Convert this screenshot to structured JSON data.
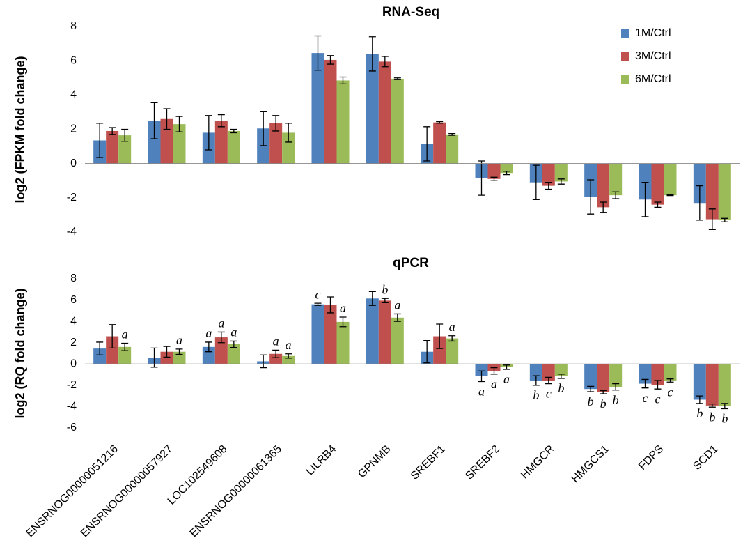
{
  "chart_data": [
    {
      "type": "bar",
      "title": "RNA-Seq",
      "y_label": "log2 (FPKM fold change)",
      "ylim": [
        -4,
        8
      ],
      "yticks": [
        -4,
        -2,
        0,
        2,
        4,
        6,
        8
      ],
      "legend": "top-right",
      "series": [
        {
          "name": "1M/Ctrl",
          "color": "#4f81bd",
          "values": [
            1.35,
            2.5,
            1.8,
            2.05,
            6.45,
            6.4,
            1.15,
            -0.85,
            -1.1,
            -1.95,
            -2.1,
            -2.3
          ],
          "errors": [
            1.0,
            1.05,
            1.0,
            1.0,
            1.0,
            1.0,
            1.0,
            1.0,
            1.0,
            1.0,
            1.0,
            1.0
          ]
        },
        {
          "name": "3M/Ctrl",
          "color": "#c0504d",
          "values": [
            1.9,
            2.6,
            2.5,
            2.35,
            6.05,
            5.95,
            2.4,
            -0.9,
            -1.3,
            -2.55,
            -2.4,
            -3.25
          ],
          "errors": [
            0.2,
            0.6,
            0.35,
            0.45,
            0.25,
            0.3,
            0.05,
            0.1,
            0.2,
            0.3,
            0.15,
            0.6
          ]
        },
        {
          "name": "6M/Ctrl",
          "color": "#9bbb59",
          "values": [
            1.65,
            2.3,
            1.9,
            1.8,
            4.85,
            4.95,
            1.7,
            -0.55,
            -1.05,
            -1.85,
            -1.85,
            -3.3
          ],
          "errors": [
            0.35,
            0.45,
            0.1,
            0.55,
            0.2,
            0.05,
            0.05,
            0.1,
            0.15,
            0.2,
            0.02,
            0.1
          ]
        }
      ]
    },
    {
      "type": "bar",
      "title": "qPCR",
      "y_label": "log2 (RQ fold change)",
      "categories": [
        "ENSRNOG00000051216",
        "ENSRNOG00000057927",
        "LOC102549608",
        "ENSRNOG00000061365",
        "LILRB4",
        "GPNMB",
        "SREBF1",
        "SREBF2",
        "HMGCR",
        "HMGCS1",
        "FDPS",
        "SCD1"
      ],
      "ylim": [
        -6,
        8
      ],
      "yticks": [
        -6,
        -4,
        -2,
        0,
        2,
        4,
        6,
        8
      ],
      "series": [
        {
          "color": "#4f81bd",
          "values": [
            1.45,
            0.6,
            1.6,
            0.25,
            5.6,
            6.15,
            1.15,
            -1.15,
            -1.55,
            -2.35,
            -1.85,
            -3.35
          ],
          "errors": [
            0.6,
            0.9,
            0.45,
            0.6,
            0.1,
            0.65,
            1.05,
            0.5,
            0.45,
            0.25,
            0.4,
            0.35
          ],
          "letters": [
            null,
            null,
            "a",
            null,
            "c",
            null,
            null,
            "a",
            "b",
            "b",
            "c",
            "b"
          ]
        },
        {
          "color": "#c0504d",
          "values": [
            2.6,
            1.15,
            2.5,
            0.95,
            5.55,
            5.95,
            2.6,
            -0.65,
            -1.55,
            -2.65,
            -1.95,
            -3.9
          ],
          "errors": [
            1.1,
            0.5,
            0.5,
            0.35,
            0.75,
            0.2,
            1.15,
            0.3,
            0.3,
            0.15,
            0.4,
            0.15
          ],
          "letters": [
            null,
            null,
            "a",
            "a",
            null,
            "b",
            null,
            "a",
            "c",
            "b",
            "c",
            "b"
          ]
        },
        {
          "color": "#9bbb59",
          "values": [
            1.6,
            1.15,
            1.85,
            0.75,
            3.95,
            4.35,
            2.4,
            -0.3,
            -1.15,
            -2.15,
            -1.55,
            -3.95
          ],
          "errors": [
            0.35,
            0.25,
            0.3,
            0.2,
            0.45,
            0.35,
            0.25,
            0.2,
            0.2,
            0.3,
            0.15,
            0.25
          ],
          "letters": [
            "a",
            "a",
            "a",
            "a",
            "a",
            "a",
            "a",
            "a",
            "b",
            "b",
            "c",
            "b"
          ]
        }
      ]
    }
  ]
}
